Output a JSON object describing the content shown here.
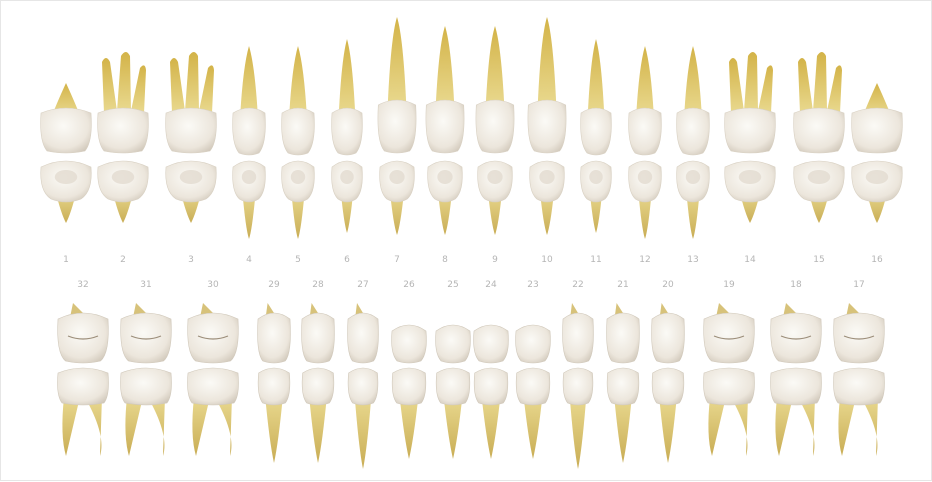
{
  "upper": [
    {
      "n": "1",
      "type": "molar"
    },
    {
      "n": "2",
      "type": "molar"
    },
    {
      "n": "3",
      "type": "molar"
    },
    {
      "n": "4",
      "type": "premolar"
    },
    {
      "n": "5",
      "type": "premolar"
    },
    {
      "n": "6",
      "type": "canine"
    },
    {
      "n": "7",
      "type": "incisor"
    },
    {
      "n": "8",
      "type": "incisor"
    },
    {
      "n": "9",
      "type": "incisor"
    },
    {
      "n": "10",
      "type": "incisor"
    },
    {
      "n": "11",
      "type": "canine"
    },
    {
      "n": "12",
      "type": "premolar"
    },
    {
      "n": "13",
      "type": "premolar"
    },
    {
      "n": "14",
      "type": "molar"
    },
    {
      "n": "15",
      "type": "molar"
    },
    {
      "n": "16",
      "type": "molar"
    }
  ],
  "lower": [
    {
      "n": "32",
      "type": "molar"
    },
    {
      "n": "31",
      "type": "molar"
    },
    {
      "n": "30",
      "type": "molar"
    },
    {
      "n": "29",
      "type": "premolar"
    },
    {
      "n": "28",
      "type": "premolar"
    },
    {
      "n": "27",
      "type": "canine"
    },
    {
      "n": "26",
      "type": "incisor"
    },
    {
      "n": "25",
      "type": "incisor"
    },
    {
      "n": "24",
      "type": "incisor"
    },
    {
      "n": "23",
      "type": "incisor"
    },
    {
      "n": "22",
      "type": "canine"
    },
    {
      "n": "21",
      "type": "premolar"
    },
    {
      "n": "20",
      "type": "premolar"
    },
    {
      "n": "19",
      "type": "molar"
    },
    {
      "n": "18",
      "type": "molar"
    },
    {
      "n": "17",
      "type": "molar"
    }
  ],
  "colors": {
    "crown": "#f3efe8",
    "crown_shade": "#d9d2c6",
    "root": "#e3cf86",
    "root_dark": "#c9ad55",
    "label": "#b5b5b5"
  }
}
